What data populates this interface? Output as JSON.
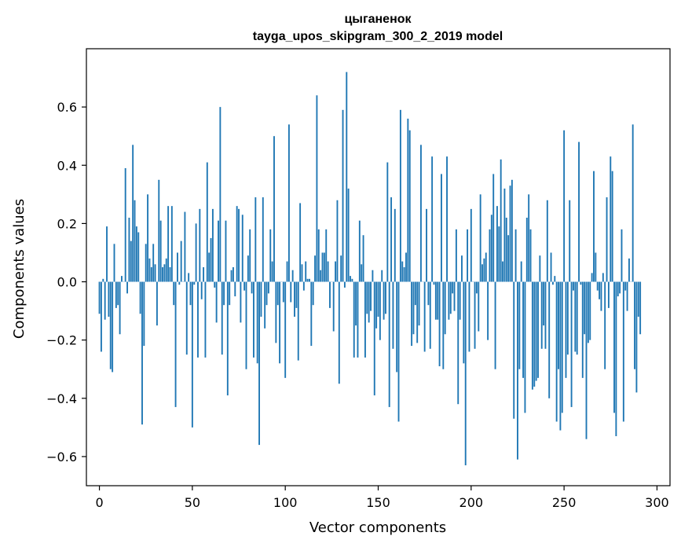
{
  "chart_data": {
    "type": "bar",
    "title": "цыганенок",
    "subtitle": "tayga_upos_skipgram_300_2_2019 model",
    "xlabel": "Vector components",
    "ylabel": "Components values",
    "xlim": [
      -7,
      307
    ],
    "ylim": [
      -0.7,
      0.8
    ],
    "xticks": [
      0,
      50,
      100,
      150,
      200,
      250,
      300
    ],
    "xtick_labels": [
      "0",
      "50",
      "100",
      "150",
      "200",
      "250",
      "300"
    ],
    "yticks": [
      -0.6,
      -0.4,
      -0.2,
      0.0,
      0.2,
      0.4,
      0.6
    ],
    "ytick_labels": [
      "−0.6",
      "−0.4",
      "−0.2",
      "0.0",
      "0.2",
      "0.4",
      "0.6"
    ],
    "grid": false,
    "bar_color": "#1f77b4",
    "x": "0..299 (component index)",
    "values": [
      -0.11,
      -0.24,
      0.01,
      -0.13,
      0.19,
      -0.12,
      -0.3,
      -0.31,
      0.13,
      -0.09,
      -0.08,
      -0.18,
      0.02,
      0.0,
      0.39,
      -0.04,
      0.22,
      0.14,
      0.47,
      0.28,
      0.19,
      0.17,
      -0.11,
      -0.49,
      -0.22,
      0.13,
      0.3,
      0.08,
      0.05,
      0.13,
      0.06,
      -0.15,
      0.35,
      0.21,
      0.05,
      0.06,
      0.08,
      0.26,
      0.05,
      0.26,
      -0.08,
      -0.43,
      0.1,
      -0.01,
      0.14,
      0.0,
      0.24,
      -0.25,
      0.03,
      -0.08,
      -0.5,
      -0.01,
      0.2,
      -0.26,
      0.25,
      -0.06,
      0.05,
      -0.26,
      0.41,
      0.1,
      0.15,
      0.25,
      -0.02,
      -0.14,
      0.21,
      0.6,
      -0.25,
      -0.08,
      0.21,
      -0.39,
      -0.08,
      0.04,
      0.05,
      -0.05,
      0.26,
      0.25,
      -0.14,
      0.23,
      -0.03,
      -0.3,
      0.09,
      0.18,
      -0.04,
      -0.26,
      0.29,
      -0.28,
      -0.56,
      -0.12,
      0.29,
      -0.16,
      -0.08,
      -0.04,
      0.18,
      0.07,
      0.5,
      -0.21,
      -0.08,
      -0.28,
      0.0,
      -0.07,
      -0.33,
      0.07,
      0.54,
      -0.07,
      0.04,
      -0.12,
      -0.09,
      -0.27,
      0.27,
      0.06,
      -0.03,
      0.07,
      0.01,
      0.01,
      -0.22,
      -0.08,
      0.09,
      0.64,
      0.18,
      0.04,
      0.1,
      0.1,
      0.18,
      0.07,
      -0.09,
      0.0,
      -0.17,
      0.07,
      0.28,
      -0.35,
      0.09,
      0.59,
      -0.02,
      0.72,
      0.32,
      0.02,
      0.01,
      -0.26,
      -0.15,
      -0.26,
      0.21,
      0.06,
      0.16,
      -0.26,
      -0.11,
      -0.14,
      -0.1,
      0.04,
      -0.39,
      -0.16,
      -0.12,
      -0.2,
      0.04,
      -0.13,
      -0.11,
      0.41,
      -0.43,
      0.29,
      -0.23,
      0.25,
      -0.31,
      -0.48,
      0.59,
      0.07,
      0.05,
      0.1,
      0.56,
      0.52,
      -0.22,
      -0.18,
      -0.08,
      -0.21,
      -0.15,
      0.47,
      0.0,
      -0.24,
      0.25,
      -0.08,
      -0.23,
      0.43,
      -0.01,
      -0.13,
      -0.13,
      -0.29,
      0.37,
      -0.3,
      -0.18,
      0.43,
      -0.13,
      -0.11,
      -0.04,
      -0.1,
      0.18,
      -0.42,
      -0.13,
      0.09,
      -0.28,
      -0.63,
      0.18,
      -0.24,
      0.25,
      0.0,
      -0.23,
      -0.04,
      -0.17,
      0.3,
      0.06,
      0.08,
      0.1,
      -0.2,
      0.18,
      0.23,
      0.37,
      -0.3,
      0.26,
      0.19,
      0.42,
      0.07,
      0.32,
      0.22,
      0.16,
      0.33,
      0.35,
      -0.47,
      0.18,
      -0.61,
      -0.3,
      0.07,
      -0.33,
      -0.45,
      0.22,
      0.3,
      0.18,
      -0.37,
      -0.36,
      -0.34,
      -0.33,
      0.09,
      -0.23,
      -0.15,
      -0.23,
      0.28,
      -0.4,
      0.1,
      -0.01,
      0.02,
      -0.48,
      -0.3,
      -0.51,
      -0.45,
      0.52,
      -0.33,
      -0.25,
      0.28,
      -0.43,
      -0.03,
      -0.24,
      -0.25,
      0.48,
      -0.01,
      -0.33,
      -0.18,
      -0.54,
      -0.21,
      -0.2,
      0.03,
      0.38,
      0.1,
      -0.03,
      -0.06,
      -0.1,
      0.03,
      -0.3,
      0.29,
      -0.09,
      0.43,
      0.38,
      -0.45,
      -0.53,
      -0.05,
      -0.04,
      0.18,
      -0.48,
      -0.03,
      -0.1,
      0.08,
      0.0,
      0.54,
      -0.3,
      -0.38,
      -0.12,
      -0.18
    ]
  }
}
